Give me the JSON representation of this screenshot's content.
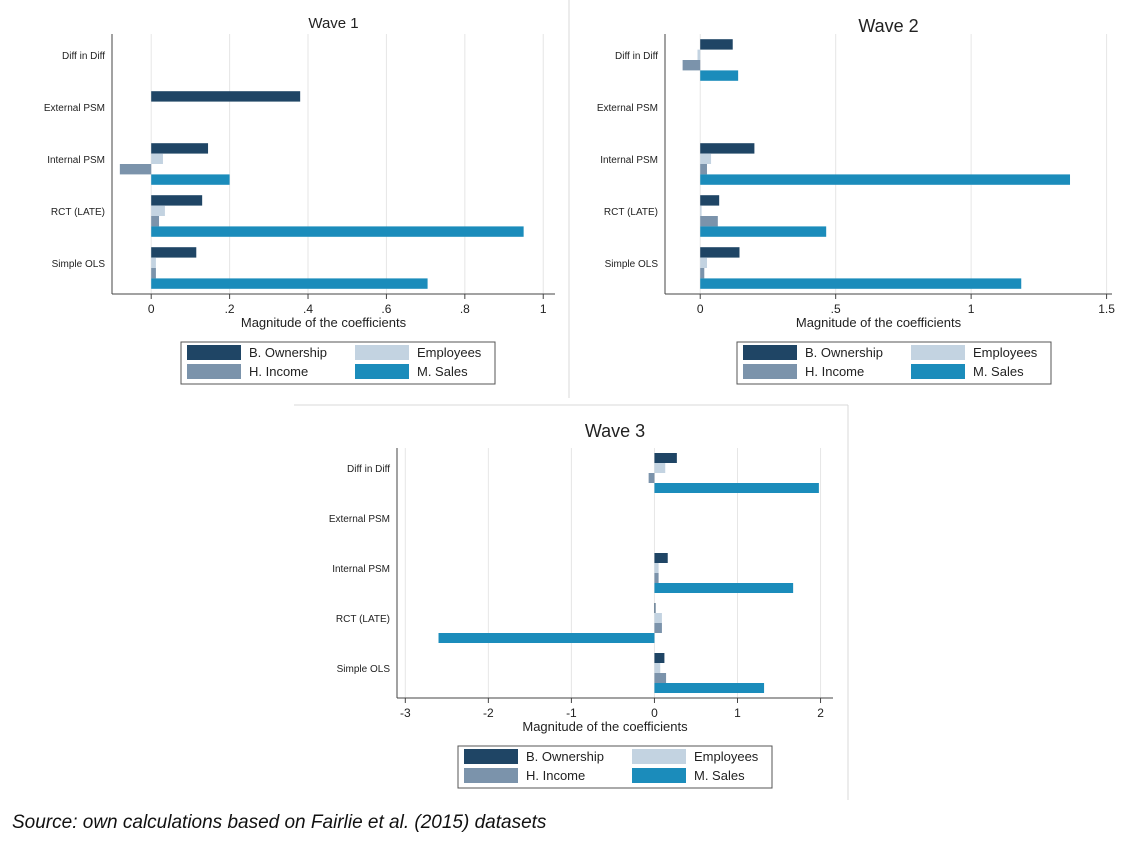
{
  "colors": {
    "b_ownership": "#1f4565",
    "employees": "#c3d3e1",
    "h_income": "#7b93ab",
    "m_sales": "#1b8cbb"
  },
  "caption": "Source: own calculations based on Fairlie et al. (2015) datasets",
  "chart_data": [
    {
      "type": "bar",
      "orientation": "horizontal",
      "title": "Wave 1",
      "xlabel": "Magnitude of the coefficients",
      "categories": [
        "Diff in Diff",
        "External PSM",
        "Internal PSM",
        "RCT (LATE)",
        "Simple OLS"
      ],
      "xlim": [
        -0.1,
        1.03
      ],
      "xticks": [
        0,
        0.2,
        0.4,
        0.6,
        0.8,
        1
      ],
      "xtick_labels": [
        "0",
        ".2",
        ".4",
        ".6",
        ".8",
        "1"
      ],
      "grid": true,
      "legend": "bottom",
      "series": [
        {
          "name": "B. Ownership",
          "values": [
            0,
            0.38,
            0.145,
            0.13,
            0.115
          ]
        },
        {
          "name": "Employees",
          "values": [
            0,
            0,
            0.03,
            0.035,
            0.012
          ]
        },
        {
          "name": "H. Income",
          "values": [
            0,
            0,
            -0.08,
            0.02,
            0.012
          ]
        },
        {
          "name": "M. Sales",
          "values": [
            0,
            0,
            0.2,
            0.95,
            0.705
          ]
        }
      ]
    },
    {
      "type": "bar",
      "orientation": "horizontal",
      "title": "Wave 2",
      "xlabel": "Magnitude of the coefficients",
      "categories": [
        "Diff in Diff",
        "External PSM",
        "Internal PSM",
        "RCT (LATE)",
        "Simple OLS"
      ],
      "xlim": [
        -0.13,
        1.52
      ],
      "xticks": [
        0,
        0.5,
        1,
        1.5
      ],
      "xtick_labels": [
        "0",
        ".5",
        "1",
        "1.5"
      ],
      "grid": true,
      "legend": "bottom",
      "series": [
        {
          "name": "B. Ownership",
          "values": [
            0.12,
            0,
            0.2,
            0.07,
            0.145
          ]
        },
        {
          "name": "Employees",
          "values": [
            -0.01,
            0,
            0.04,
            0.005,
            0.025
          ]
        },
        {
          "name": "H. Income",
          "values": [
            -0.065,
            0,
            0.025,
            0.065,
            0.015
          ]
        },
        {
          "name": "M. Sales",
          "values": [
            0.14,
            0,
            1.365,
            0.465,
            1.185
          ]
        }
      ]
    },
    {
      "type": "bar",
      "orientation": "horizontal",
      "title": "Wave 3",
      "xlabel": "Magnitude of the coefficients",
      "categories": [
        "Diff in Diff",
        "External PSM",
        "Internal PSM",
        "RCT (LATE)",
        "Simple OLS"
      ],
      "xlim": [
        -3.1,
        2.15
      ],
      "xticks": [
        -3,
        -2,
        -1,
        0,
        1,
        2
      ],
      "xtick_labels": [
        "-3",
        "-2",
        "-1",
        "0",
        "1",
        "2"
      ],
      "grid": true,
      "legend": "bottom",
      "series": [
        {
          "name": "B. Ownership",
          "values": [
            0.27,
            0,
            0.16,
            0.01,
            0.12
          ]
        },
        {
          "name": "Employees",
          "values": [
            0.13,
            0,
            0.05,
            0.09,
            0.07
          ]
        },
        {
          "name": "H. Income",
          "values": [
            -0.07,
            0,
            0.05,
            0.09,
            0.14
          ]
        },
        {
          "name": "M. Sales",
          "values": [
            1.98,
            0,
            1.67,
            -2.6,
            1.32
          ]
        }
      ]
    }
  ]
}
